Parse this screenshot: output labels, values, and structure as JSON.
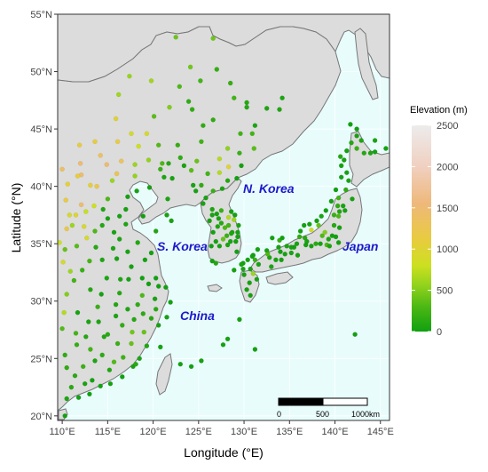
{
  "axes": {
    "xlabel": "Longitude (°E)",
    "ylabel": "Latitude (°N)",
    "x_ticks": [
      "110°E",
      "115°E",
      "120°E",
      "125°E",
      "130°E",
      "135°E",
      "140°E",
      "145°E"
    ],
    "x_tick_values": [
      110,
      115,
      120,
      125,
      130,
      135,
      140,
      145
    ],
    "y_ticks": [
      "20°N",
      "25°N",
      "30°N",
      "35°N",
      "40°N",
      "45°N",
      "50°N",
      "55°N"
    ],
    "y_tick_values": [
      20,
      25,
      30,
      35,
      40,
      45,
      50,
      55
    ],
    "xlim": [
      109.5,
      146
    ],
    "ylim": [
      19.6,
      55
    ]
  },
  "labels": {
    "north_korea": "N. Korea",
    "south_korea": "S. Korea",
    "japan": "Japan",
    "china": "China"
  },
  "legend": {
    "title": "Elevation (m)",
    "ticks": [
      "2500",
      "2000",
      "1500",
      "1000",
      "500",
      "0"
    ],
    "tick_values": [
      2500,
      2000,
      1500,
      1000,
      500,
      0
    ],
    "colors": [
      "#e6e6e6",
      "#f0c4a8",
      "#eeb87a",
      "#e9cb40",
      "#b8d820",
      "#6cc21a",
      "#10a010"
    ]
  },
  "scale_bar": {
    "labels": [
      "0",
      "500",
      "1000km"
    ]
  },
  "colors": {
    "sea": "#e8fcfc",
    "land": "#dcdcdc",
    "coast": "#777777",
    "grid": "#ffffff",
    "label": "#1a1acc"
  },
  "chart_data": {
    "type": "scatter",
    "description_free": true,
    "x_unit": "degrees East",
    "y_unit": "degrees North",
    "points": [
      [
        110.3,
        20.0,
        20
      ],
      [
        110.5,
        21.5,
        60
      ],
      [
        111.0,
        22.5,
        120
      ],
      [
        112.5,
        22.8,
        40
      ],
      [
        113.3,
        23.1,
        10
      ],
      [
        114.2,
        22.6,
        20
      ],
      [
        115.3,
        22.8,
        30
      ],
      [
        116.6,
        23.4,
        15
      ],
      [
        117.8,
        24.3,
        40
      ],
      [
        118.1,
        24.5,
        120
      ],
      [
        119.3,
        26.1,
        80
      ],
      [
        120.6,
        27.9,
        30
      ],
      [
        121.5,
        28.6,
        30
      ],
      [
        121.9,
        29.9,
        20
      ],
      [
        121.4,
        31.2,
        5
      ],
      [
        120.3,
        32.0,
        10
      ],
      [
        119.8,
        34.2,
        20
      ],
      [
        120.3,
        36.1,
        70
      ],
      [
        121.5,
        37.5,
        40
      ],
      [
        122.0,
        37.0,
        40
      ],
      [
        117.2,
        39.1,
        10
      ],
      [
        118.2,
        39.6,
        30
      ],
      [
        119.6,
        39.9,
        30
      ],
      [
        121.6,
        38.9,
        50
      ],
      [
        121.2,
        40.8,
        60
      ],
      [
        123.4,
        41.8,
        50
      ],
      [
        124.4,
        40.1,
        40
      ],
      [
        125.3,
        43.9,
        230
      ],
      [
        126.6,
        45.8,
        140
      ],
      [
        128.9,
        47.7,
        250
      ],
      [
        130.3,
        47.3,
        100
      ],
      [
        132.5,
        46.8,
        60
      ],
      [
        129.6,
        44.6,
        240
      ],
      [
        127.0,
        50.2,
        170
      ],
      [
        124.1,
        50.4,
        440
      ],
      [
        126.6,
        52.9,
        430
      ],
      [
        122.5,
        53.0,
        420
      ],
      [
        119.8,
        49.2,
        620
      ],
      [
        117.4,
        49.6,
        580
      ],
      [
        116.2,
        48.0,
        620
      ],
      [
        115.9,
        45.9,
        1000
      ],
      [
        113.6,
        43.9,
        1100
      ],
      [
        111.9,
        43.6,
        1120
      ],
      [
        110.0,
        41.5,
        1400
      ],
      [
        112.1,
        41.0,
        1450
      ],
      [
        114.9,
        41.9,
        1500
      ],
      [
        116.0,
        41.1,
        1280
      ],
      [
        118.0,
        40.9,
        560
      ],
      [
        115.5,
        40.5,
        600
      ],
      [
        113.1,
        40.1,
        1050
      ],
      [
        110.4,
        38.8,
        1150
      ],
      [
        111.5,
        37.5,
        1000
      ],
      [
        112.6,
        37.8,
        780
      ],
      [
        113.6,
        36.1,
        300
      ],
      [
        114.5,
        38.0,
        80
      ],
      [
        116.3,
        37.4,
        20
      ],
      [
        115.7,
        36.0,
        40
      ],
      [
        117.0,
        36.7,
        60
      ],
      [
        118.3,
        35.1,
        90
      ],
      [
        117.2,
        34.3,
        40
      ],
      [
        115.6,
        34.6,
        60
      ],
      [
        113.7,
        34.7,
        110
      ],
      [
        111.6,
        34.8,
        340
      ],
      [
        110.3,
        34.5,
        400
      ],
      [
        111.1,
        36.6,
        600
      ],
      [
        112.4,
        36.5,
        920
      ],
      [
        113.0,
        33.5,
        250
      ],
      [
        114.3,
        30.6,
        25
      ],
      [
        115.9,
        29.7,
        90
      ],
      [
        116.4,
        31.9,
        60
      ],
      [
        117.3,
        31.9,
        30
      ],
      [
        118.8,
        32.0,
        10
      ],
      [
        119.5,
        31.5,
        10
      ],
      [
        120.6,
        31.3,
        5
      ],
      [
        120.2,
        30.2,
        40
      ],
      [
        118.3,
        29.7,
        150
      ],
      [
        117.2,
        29.3,
        60
      ],
      [
        115.0,
        27.1,
        120
      ],
      [
        116.6,
        27.9,
        160
      ],
      [
        114.0,
        28.2,
        60
      ],
      [
        112.9,
        28.2,
        50
      ],
      [
        111.7,
        29.0,
        40
      ],
      [
        110.5,
        30.6,
        500
      ],
      [
        110.0,
        27.6,
        320
      ],
      [
        111.5,
        27.2,
        250
      ],
      [
        112.6,
        26.9,
        100
      ],
      [
        113.1,
        25.8,
        250
      ],
      [
        114.4,
        25.3,
        140
      ],
      [
        115.7,
        24.7,
        320
      ],
      [
        116.1,
        26.3,
        200
      ],
      [
        117.6,
        26.3,
        400
      ],
      [
        118.9,
        28.9,
        130
      ],
      [
        120.8,
        26.0,
        40
      ],
      [
        118.5,
        25.0,
        60
      ],
      [
        113.6,
        24.8,
        60
      ],
      [
        112.3,
        24.3,
        200
      ],
      [
        110.3,
        25.3,
        160
      ],
      [
        111.4,
        23.5,
        120
      ],
      [
        110.5,
        24.2,
        150
      ],
      [
        113.0,
        21.9,
        10
      ],
      [
        111.8,
        21.6,
        20
      ],
      [
        115.2,
        24.0,
        80
      ],
      [
        116.7,
        25.1,
        230
      ],
      [
        117.7,
        27.3,
        430
      ],
      [
        119.8,
        28.5,
        100
      ],
      [
        118.8,
        30.5,
        300
      ],
      [
        116.3,
        30.7,
        100
      ],
      [
        114.9,
        32.0,
        70
      ],
      [
        113.1,
        31.0,
        90
      ],
      [
        111.3,
        31.8,
        250
      ],
      [
        112.2,
        32.7,
        200
      ],
      [
        114.4,
        33.6,
        60
      ],
      [
        116.0,
        33.7,
        40
      ],
      [
        117.6,
        33.0,
        30
      ],
      [
        119.1,
        33.6,
        10
      ],
      [
        116.3,
        35.4,
        60
      ],
      [
        115.0,
        37.2,
        40
      ],
      [
        113.5,
        38.3,
        800
      ],
      [
        112.7,
        35.5,
        900
      ],
      [
        114.4,
        36.6,
        90
      ],
      [
        110.9,
        32.6,
        600
      ],
      [
        110.2,
        29.0,
        700
      ],
      [
        111.6,
        26.2,
        180
      ],
      [
        114.6,
        26.9,
        90
      ],
      [
        113.9,
        29.5,
        200
      ],
      [
        115.9,
        28.7,
        60
      ],
      [
        117.9,
        28.4,
        100
      ],
      [
        119.0,
        27.3,
        400
      ],
      [
        120.3,
        29.3,
        120
      ],
      [
        110.6,
        40.2,
        1050
      ],
      [
        113.8,
        40.0,
        1200
      ],
      [
        115.0,
        38.9,
        300
      ],
      [
        117.0,
        38.0,
        20
      ],
      [
        118.9,
        37.4,
        10
      ],
      [
        122.1,
        40.7,
        40
      ],
      [
        120.8,
        41.5,
        200
      ],
      [
        119.5,
        42.3,
        560
      ],
      [
        121.7,
        42.0,
        100
      ],
      [
        122.7,
        43.6,
        180
      ],
      [
        124.8,
        42.2,
        400
      ],
      [
        126.0,
        41.1,
        250
      ],
      [
        127.3,
        42.4,
        700
      ],
      [
        128.2,
        43.3,
        550
      ],
      [
        129.5,
        42.9,
        200
      ],
      [
        130.9,
        44.6,
        250
      ],
      [
        131.1,
        43.3,
        350
      ],
      [
        125.5,
        45.3,
        150
      ],
      [
        124.3,
        46.7,
        160
      ],
      [
        123.9,
        47.4,
        150
      ],
      [
        121.8,
        46.9,
        500
      ],
      [
        120.1,
        46.1,
        350
      ],
      [
        122.9,
        48.7,
        300
      ],
      [
        125.2,
        49.2,
        250
      ],
      [
        128.5,
        49.0,
        180
      ],
      [
        130.3,
        46.9,
        90
      ],
      [
        131.2,
        45.3,
        60
      ],
      [
        133.9,
        46.7,
        80
      ],
      [
        134.2,
        47.7,
        60
      ],
      [
        119.3,
        44.6,
        900
      ],
      [
        117.6,
        44.6,
        900
      ],
      [
        116.1,
        43.9,
        1150
      ],
      [
        118.4,
        43.5,
        800
      ],
      [
        120.6,
        43.6,
        320
      ],
      [
        121.0,
        42.0,
        300
      ],
      [
        123.0,
        42.5,
        150
      ],
      [
        124.2,
        41.4,
        350
      ],
      [
        118.0,
        41.9,
        600
      ],
      [
        116.5,
        42.2,
        1300
      ],
      [
        114.2,
        42.7,
        1350
      ],
      [
        112.0,
        42.0,
        1480
      ],
      [
        111.7,
        40.9,
        1100
      ],
      [
        109.7,
        35.1,
        800
      ],
      [
        110.1,
        33.4,
        900
      ],
      [
        110.5,
        36.3,
        1200
      ],
      [
        110.8,
        37.5,
        900
      ],
      [
        112.1,
        38.4,
        1450
      ],
      [
        126.5,
        37.5,
        40
      ],
      [
        127.0,
        37.6,
        30
      ],
      [
        127.5,
        37.9,
        200
      ],
      [
        128.6,
        37.8,
        30
      ],
      [
        129.0,
        37.5,
        20
      ],
      [
        129.4,
        36.6,
        50
      ],
      [
        128.7,
        36.0,
        60
      ],
      [
        129.3,
        35.6,
        30
      ],
      [
        129.1,
        35.2,
        10
      ],
      [
        128.6,
        35.9,
        60
      ],
      [
        127.9,
        36.4,
        300
      ],
      [
        127.5,
        36.8,
        100
      ],
      [
        127.1,
        36.5,
        60
      ],
      [
        126.6,
        36.0,
        20
      ],
      [
        126.9,
        35.2,
        30
      ],
      [
        126.4,
        34.8,
        10
      ],
      [
        127.3,
        34.8,
        30
      ],
      [
        128.2,
        34.9,
        50
      ],
      [
        128.5,
        35.2,
        40
      ],
      [
        127.7,
        35.4,
        400
      ],
      [
        128.1,
        35.7,
        200
      ],
      [
        128.3,
        36.6,
        250
      ],
      [
        129.3,
        36.0,
        20
      ],
      [
        126.2,
        37.0,
        30
      ],
      [
        127.2,
        37.2,
        40
      ],
      [
        128.9,
        37.1,
        600
      ],
      [
        128.3,
        37.3,
        700
      ],
      [
        126.5,
        33.5,
        20
      ],
      [
        126.9,
        33.3,
        100
      ],
      [
        125.8,
        39.0,
        40
      ],
      [
        126.5,
        38.0,
        60
      ],
      [
        126.6,
        39.6,
        200
      ],
      [
        125.3,
        40.1,
        150
      ],
      [
        127.6,
        39.8,
        50
      ],
      [
        128.2,
        40.5,
        100
      ],
      [
        129.2,
        40.7,
        10
      ],
      [
        129.7,
        41.8,
        30
      ],
      [
        128.3,
        41.7,
        1000
      ],
      [
        127.3,
        41.2,
        700
      ],
      [
        125.5,
        38.5,
        40
      ],
      [
        124.7,
        39.6,
        30
      ],
      [
        141.3,
        43.1,
        20
      ],
      [
        141.8,
        43.8,
        100
      ],
      [
        142.4,
        43.3,
        200
      ],
      [
        143.2,
        42.9,
        100
      ],
      [
        144.4,
        43.0,
        10
      ],
      [
        145.6,
        43.3,
        20
      ],
      [
        142.4,
        44.4,
        30
      ],
      [
        141.7,
        45.4,
        10
      ],
      [
        142.9,
        44.0,
        60
      ],
      [
        141.0,
        42.3,
        30
      ],
      [
        140.7,
        41.8,
        30
      ],
      [
        140.7,
        40.8,
        20
      ],
      [
        141.5,
        40.5,
        50
      ],
      [
        141.2,
        39.7,
        150
      ],
      [
        140.1,
        39.7,
        20
      ],
      [
        140.3,
        38.3,
        150
      ],
      [
        140.9,
        38.3,
        40
      ],
      [
        141.9,
        38.9,
        20
      ],
      [
        140.5,
        37.8,
        70
      ],
      [
        140.4,
        37.4,
        300
      ],
      [
        139.9,
        37.5,
        200
      ],
      [
        139.0,
        37.9,
        10
      ],
      [
        138.5,
        37.4,
        50
      ],
      [
        139.9,
        36.6,
        110
      ],
      [
        140.5,
        36.4,
        30
      ],
      [
        140.1,
        35.6,
        20
      ],
      [
        139.7,
        35.7,
        20
      ],
      [
        139.3,
        35.4,
        50
      ],
      [
        138.6,
        35.7,
        300
      ],
      [
        138.2,
        36.6,
        400
      ],
      [
        137.4,
        36.2,
        900
      ],
      [
        137.2,
        36.7,
        20
      ],
      [
        136.6,
        36.6,
        30
      ],
      [
        136.2,
        36.1,
        20
      ],
      [
        136.9,
        35.2,
        40
      ],
      [
        136.8,
        34.9,
        10
      ],
      [
        137.4,
        34.8,
        30
      ],
      [
        138.4,
        35.0,
        20
      ],
      [
        139.1,
        34.9,
        300
      ],
      [
        135.8,
        35.0,
        40
      ],
      [
        135.5,
        34.7,
        20
      ],
      [
        135.2,
        34.7,
        20
      ],
      [
        135.9,
        34.0,
        30
      ],
      [
        135.2,
        34.2,
        40
      ],
      [
        134.7,
        34.8,
        50
      ],
      [
        133.9,
        35.3,
        200
      ],
      [
        133.1,
        35.5,
        20
      ],
      [
        134.2,
        35.5,
        10
      ],
      [
        132.5,
        34.4,
        30
      ],
      [
        133.8,
        34.7,
        20
      ],
      [
        131.5,
        34.5,
        40
      ],
      [
        131.0,
        34.0,
        20
      ],
      [
        130.9,
        33.9,
        10
      ],
      [
        130.4,
        33.6,
        20
      ],
      [
        129.9,
        33.3,
        30
      ],
      [
        129.9,
        32.8,
        50
      ],
      [
        130.7,
        32.8,
        40
      ],
      [
        131.6,
        33.2,
        40
      ],
      [
        131.4,
        31.9,
        30
      ],
      [
        130.6,
        31.6,
        30
      ],
      [
        130.3,
        31.0,
        20
      ],
      [
        131.0,
        32.4,
        600
      ],
      [
        132.8,
        33.8,
        50
      ],
      [
        133.5,
        33.6,
        20
      ],
      [
        134.1,
        33.6,
        10
      ],
      [
        134.5,
        34.1,
        30
      ],
      [
        134.0,
        34.3,
        10
      ],
      [
        133.0,
        33.0,
        50
      ],
      [
        132.6,
        34.1,
        300
      ],
      [
        136.7,
        35.5,
        100
      ],
      [
        137.9,
        35.0,
        120
      ],
      [
        138.9,
        36.0,
        500
      ],
      [
        136.1,
        35.6,
        150
      ],
      [
        138.0,
        37.0,
        10
      ],
      [
        141.1,
        37.9,
        20
      ],
      [
        139.6,
        38.7,
        20
      ],
      [
        140.4,
        39.0,
        250
      ],
      [
        141.3,
        41.2,
        20
      ],
      [
        140.6,
        42.6,
        100
      ],
      [
        144.4,
        44.0,
        40
      ],
      [
        142.4,
        45.0,
        10
      ],
      [
        143.9,
        42.9,
        60
      ],
      [
        140.4,
        35.1,
        20
      ],
      [
        139.4,
        34.8,
        50
      ],
      [
        131.2,
        33.6,
        200
      ],
      [
        129.7,
        33.2,
        40
      ],
      [
        129.2,
        34.3,
        10
      ],
      [
        128.9,
        32.7,
        30
      ],
      [
        130.0,
        32.3,
        20
      ],
      [
        130.7,
        30.5,
        20
      ],
      [
        129.5,
        28.4,
        30
      ],
      [
        127.7,
        26.2,
        30
      ],
      [
        128.2,
        26.7,
        30
      ],
      [
        124.2,
        24.3,
        20
      ],
      [
        123.0,
        24.5,
        20
      ],
      [
        125.3,
        24.8,
        20
      ],
      [
        131.2,
        25.8,
        20
      ],
      [
        142.2,
        27.1,
        10
      ]
    ]
  }
}
